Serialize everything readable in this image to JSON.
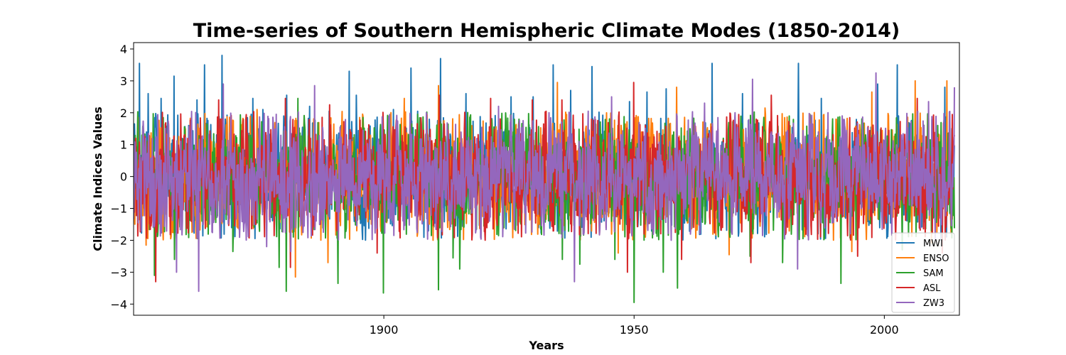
{
  "chart_data": {
    "type": "line",
    "title": "Time-series of Southern Hemispheric Climate Modes (1850-2014)",
    "xlabel": "Years",
    "ylabel": "Climate Indices Values",
    "xlim": [
      1850,
      2015
    ],
    "ylim": [
      -4.35,
      4.2
    ],
    "x_ticks": [
      1900,
      1950,
      2000
    ],
    "y_ticks": [
      -4,
      -3,
      -2,
      -1,
      0,
      1,
      2,
      3,
      4
    ],
    "y_tick_labels": [
      "−4",
      "−3",
      "−2",
      "−1",
      "0",
      "1",
      "2",
      "3",
      "4"
    ],
    "grid": false,
    "legend_position": "lower-right",
    "time_range": [
      1850,
      2014
    ],
    "points_per_year": 12,
    "series": [
      {
        "name": "MWI",
        "color": "#1f77b4",
        "spikes": [
          [
            1851.2,
            3.55
          ],
          [
            1852.9,
            2.6
          ],
          [
            1855.5,
            2.45
          ],
          [
            1858.1,
            3.15
          ],
          [
            1862.7,
            2.4
          ],
          [
            1864.2,
            3.5
          ],
          [
            1867.7,
            3.8
          ],
          [
            1873.8,
            2.45
          ],
          [
            1875.8,
            2.1
          ],
          [
            1880.6,
            2.55
          ],
          [
            1885.2,
            2.2
          ],
          [
            1889.1,
            2.05
          ],
          [
            1893.1,
            3.3
          ],
          [
            1894.5,
            2.55
          ],
          [
            1901.9,
            2.1
          ],
          [
            1905.4,
            3.4
          ],
          [
            1911.3,
            3.7
          ],
          [
            1916.4,
            2.6
          ],
          [
            1925.4,
            2.5
          ],
          [
            1929.8,
            2.5
          ],
          [
            1933.8,
            3.5
          ],
          [
            1937.3,
            2.7
          ],
          [
            1941.6,
            3.45
          ],
          [
            1949.1,
            2.35
          ],
          [
            1952.6,
            2.65
          ],
          [
            1956.4,
            2.75
          ],
          [
            1965.6,
            3.55
          ],
          [
            1971.7,
            2.6
          ],
          [
            1982.8,
            3.55
          ],
          [
            1987.4,
            2.45
          ],
          [
            1998.7,
            2.9
          ],
          [
            2002.6,
            3.5
          ],
          [
            2012.1,
            2.8
          ]
        ]
      },
      {
        "name": "ENSO",
        "color": "#ff7f0e",
        "spikes": [
          [
            1852.5,
            -2.15
          ],
          [
            1857.4,
            -1.95
          ],
          [
            1874.7,
            2.1
          ],
          [
            1882.3,
            -3.15
          ],
          [
            1888.8,
            -2.7
          ],
          [
            1904.1,
            2.45
          ],
          [
            1910.9,
            2.85
          ],
          [
            1934.7,
            2.95
          ],
          [
            1946.8,
            -2.4
          ],
          [
            1958.5,
            2.8
          ],
          [
            1969.0,
            -2.45
          ],
          [
            1976.2,
            2.15
          ],
          [
            1993.5,
            -2.35
          ],
          [
            1997.5,
            2.65
          ],
          [
            2006.2,
            3.0
          ],
          [
            2009.4,
            -2.1
          ],
          [
            2012.5,
            3.0
          ]
        ]
      },
      {
        "name": "SAM",
        "color": "#2ca02c",
        "spikes": [
          [
            1854.2,
            -3.1
          ],
          [
            1858.2,
            -2.6
          ],
          [
            1869.8,
            -2.35
          ],
          [
            1879.1,
            -2.85
          ],
          [
            1880.5,
            -3.6
          ],
          [
            1882.8,
            2.45
          ],
          [
            1890.8,
            -3.35
          ],
          [
            1899.9,
            -3.65
          ],
          [
            1910.9,
            -3.55
          ],
          [
            1913.8,
            -2.55
          ],
          [
            1915.2,
            -2.9
          ],
          [
            1935.7,
            -2.6
          ],
          [
            1939.2,
            -2.75
          ],
          [
            1946.2,
            -2.6
          ],
          [
            1950.0,
            -3.95
          ],
          [
            1955.8,
            -3.0
          ],
          [
            1958.7,
            -3.5
          ],
          [
            1973.2,
            -2.5
          ],
          [
            1979.7,
            -2.7
          ],
          [
            1991.3,
            -3.35
          ],
          [
            2003.6,
            -2.3
          ]
        ]
      },
      {
        "name": "ASL",
        "color": "#d62728",
        "spikes": [
          [
            1854.4,
            -3.3
          ],
          [
            1867.0,
            2.4
          ],
          [
            1880.3,
            2.45
          ],
          [
            1881.3,
            -2.85
          ],
          [
            1889.2,
            2.25
          ],
          [
            1898.7,
            -2.4
          ],
          [
            1911.1,
            2.55
          ],
          [
            1921.3,
            2.45
          ],
          [
            1929.7,
            2.4
          ],
          [
            1935.6,
            2.4
          ],
          [
            1948.7,
            -3.0
          ],
          [
            1949.9,
            2.95
          ],
          [
            1959.5,
            -2.6
          ],
          [
            1973.3,
            -2.7
          ],
          [
            1977.4,
            2.55
          ],
          [
            1994.7,
            -2.5
          ],
          [
            2006.6,
            2.45
          ],
          [
            2011.6,
            -2.4
          ]
        ]
      },
      {
        "name": "ZW3",
        "color": "#9467bd",
        "spikes": [
          [
            1858.6,
            -3.0
          ],
          [
            1863.0,
            -3.6
          ],
          [
            1867.9,
            2.9
          ],
          [
            1876.6,
            -2.2
          ],
          [
            1881.4,
            -2.35
          ],
          [
            1886.2,
            2.85
          ],
          [
            1908.5,
            2.0
          ],
          [
            1922.9,
            2.2
          ],
          [
            1938.1,
            -3.3
          ],
          [
            1945.5,
            2.5
          ],
          [
            1964.1,
            2.3
          ],
          [
            1973.7,
            3.05
          ],
          [
            1982.7,
            -2.9
          ],
          [
            1998.3,
            3.25
          ],
          [
            2008.8,
            2.35
          ],
          [
            2014.0,
            2.8
          ]
        ]
      }
    ]
  }
}
